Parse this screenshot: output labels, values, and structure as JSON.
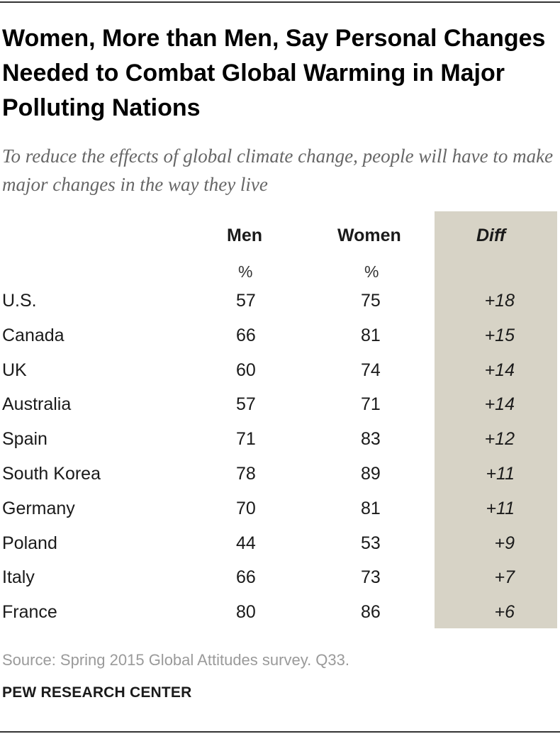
{
  "title": "Women, More than Men, Say Personal Changes Needed to Combat Global Warming in Major Polluting Nations",
  "subtitle": "To reduce the effects of global climate change, people will have to make major changes in the way they live",
  "chart_data": {
    "type": "table",
    "columns": [
      "Men",
      "Women",
      "Diff"
    ],
    "units": [
      "%",
      "%",
      ""
    ],
    "rows": [
      {
        "country": "U.S.",
        "men": "57",
        "women": "75",
        "diff": "+18"
      },
      {
        "country": "Canada",
        "men": "66",
        "women": "81",
        "diff": "+15"
      },
      {
        "country": "UK",
        "men": "60",
        "women": "74",
        "diff": "+14"
      },
      {
        "country": "Australia",
        "men": "57",
        "women": "71",
        "diff": "+14"
      },
      {
        "country": "Spain",
        "men": "71",
        "women": "83",
        "diff": "+12"
      },
      {
        "country": "South Korea",
        "men": "78",
        "women": "89",
        "diff": "+11"
      },
      {
        "country": "Germany",
        "men": "70",
        "women": "81",
        "diff": "+11"
      },
      {
        "country": "Poland",
        "men": "44",
        "women": "53",
        "diff": "+9"
      },
      {
        "country": "Italy",
        "men": "66",
        "women": "73",
        "diff": "+7"
      },
      {
        "country": "France",
        "men": "80",
        "women": "86",
        "diff": "+6"
      }
    ]
  },
  "source": "Source: Spring 2015 Global Attitudes survey. Q33.",
  "brand": "PEW RESEARCH CENTER",
  "colors": {
    "diff_column_bg": "#d7d3c6",
    "rule": "#333333"
  }
}
